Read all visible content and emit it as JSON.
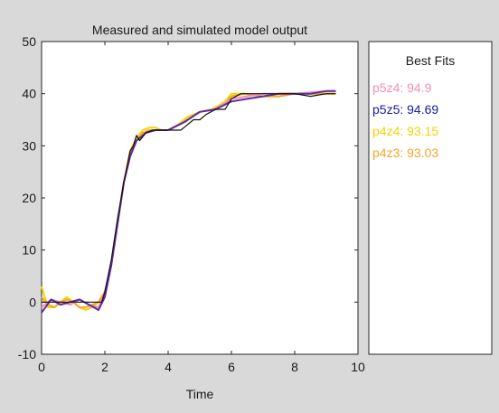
{
  "chart_data": {
    "type": "line",
    "title": "Measured and simulated model output",
    "xlabel": "Time",
    "ylabel": "",
    "xlim": [
      0,
      10
    ],
    "ylim": [
      -10,
      50
    ],
    "x_ticks": [
      "0",
      "2",
      "4",
      "6",
      "8",
      "10"
    ],
    "y_ticks": [
      "-10",
      "0",
      "10",
      "20",
      "30",
      "40",
      "50"
    ],
    "grid": false,
    "legend": {
      "title": "Best Fits",
      "placement": "right-panel",
      "entries": [
        {
          "label": "p5z4: 94.9",
          "color": "#f48fb1"
        },
        {
          "label": "p5z5: 94.69",
          "color": "#1a1aa0"
        },
        {
          "label": "p4z4: 93.15",
          "color": "#f5d400"
        },
        {
          "label": "p4z3: 93.03",
          "color": "#f5a623"
        }
      ]
    },
    "measured": {
      "color": "#111111",
      "x": [
        0,
        1.9,
        2.0,
        2.2,
        2.4,
        2.6,
        2.8,
        2.9,
        3.0,
        3.1,
        3.3,
        3.5,
        3.8,
        4.0,
        4.4,
        4.6,
        4.8,
        5.0,
        5.2,
        5.5,
        5.8,
        6.0,
        6.3,
        6.6,
        7.0,
        7.5,
        8.0,
        8.5,
        9.0,
        9.3
      ],
      "y": [
        0,
        0,
        2,
        8,
        16,
        23,
        29,
        30,
        32,
        31,
        32.5,
        33,
        33,
        33,
        33,
        34,
        35,
        35,
        36,
        37,
        37,
        39,
        40,
        40,
        40,
        40,
        40,
        39.5,
        40,
        40
      ]
    },
    "series": [
      {
        "name": "p4z4: 93.15",
        "color": "#f5d400",
        "x": [
          0,
          0.2,
          0.4,
          0.6,
          0.8,
          1.0,
          1.2,
          1.4,
          1.6,
          1.8,
          2.0,
          2.2,
          2.4,
          2.6,
          2.8,
          3.0,
          3.2,
          3.4,
          3.6,
          3.8,
          4.0,
          4.3,
          4.6,
          5.0,
          5.4,
          5.8,
          6.0,
          6.4,
          7.0,
          7.5,
          8.0,
          8.5,
          9.0,
          9.3
        ],
        "y": [
          3,
          -1,
          -1,
          0,
          1,
          0,
          -1,
          -1.5,
          -1,
          0,
          2,
          7,
          15,
          23,
          29,
          31.5,
          33,
          33.5,
          33.5,
          33,
          33,
          34,
          35.5,
          36.5,
          37,
          38.5,
          40,
          40,
          39.5,
          39.5,
          40,
          40,
          40,
          40
        ]
      },
      {
        "name": "p4z3: 93.03",
        "color": "#f5a623",
        "x": [
          0,
          0.2,
          0.4,
          0.6,
          0.8,
          1.0,
          1.2,
          1.4,
          1.6,
          1.8,
          2.0,
          2.2,
          2.4,
          2.6,
          2.8,
          3.0,
          3.2,
          3.4,
          3.6,
          3.8,
          4.0,
          4.3,
          4.6,
          5.0,
          5.4,
          5.8,
          6.0,
          6.4,
          7.0,
          7.5,
          8.0,
          8.5,
          9.0,
          9.3
        ],
        "y": [
          1,
          -0.5,
          -1,
          0,
          0.5,
          0,
          -1,
          -1,
          -0.5,
          0,
          2,
          7,
          15,
          23,
          29,
          31,
          32.5,
          33,
          33,
          33,
          33,
          34,
          35,
          36.5,
          37,
          38,
          39.5,
          40,
          39.5,
          39.5,
          40,
          40,
          40,
          40
        ]
      },
      {
        "name": "p5z4: 94.9",
        "color": "#f48fb1",
        "x": [
          0,
          0.3,
          0.6,
          0.9,
          1.2,
          1.5,
          1.8,
          2.0,
          2.2,
          2.4,
          2.6,
          2.8,
          3.0,
          3.3,
          3.6,
          4.0,
          4.5,
          5.0,
          5.5,
          6.0,
          6.5,
          7.0,
          8.0,
          9.0,
          9.3
        ],
        "y": [
          -1,
          0.5,
          0,
          -0.5,
          0.5,
          -0.5,
          -1,
          2,
          7,
          15,
          23,
          28,
          31,
          32.5,
          33,
          33,
          34.5,
          36.5,
          37,
          39,
          39.5,
          40,
          40,
          40.5,
          40.5
        ]
      },
      {
        "name": "p5z5: 94.69",
        "color": "#5b2ca0",
        "x": [
          0,
          0.3,
          0.6,
          0.9,
          1.2,
          1.5,
          1.8,
          2.0,
          2.2,
          2.4,
          2.6,
          2.8,
          3.0,
          3.3,
          3.6,
          4.0,
          4.5,
          5.0,
          5.5,
          6.0,
          6.5,
          7.0,
          7.5,
          8.0,
          8.5,
          9.0,
          9.3
        ],
        "y": [
          -2,
          0.5,
          -0.5,
          0,
          0.5,
          -0.5,
          -1.5,
          1,
          7,
          15,
          23,
          28,
          31,
          32.5,
          33,
          33,
          34.5,
          36.5,
          37,
          38.5,
          39,
          39.5,
          40,
          40,
          40,
          40.5,
          40.5
        ]
      }
    ]
  }
}
